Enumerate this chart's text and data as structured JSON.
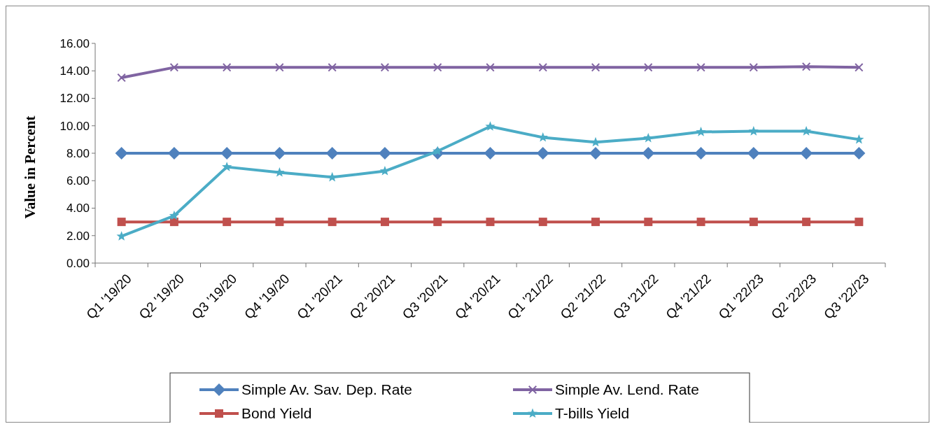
{
  "chart_data": {
    "type": "line",
    "ylabel": "Value in Percent",
    "categories": [
      "Q1 '19/20",
      "Q2 '19/20",
      "Q3 '19/20",
      "Q4 '19/20",
      "Q1 '20/21",
      "Q2 '20/21",
      "Q3 '20/21",
      "Q4 '20/21",
      "Q1 '21/22",
      "Q2 '21/22",
      "Q3 '21/22",
      "Q4 '21/22",
      "Q1 '22/23",
      "Q2 '22/23",
      "Q3 '22/23"
    ],
    "series": [
      {
        "name": "Simple Av. Sav. Dep. Rate",
        "color": "#4f81bd",
        "marker": "diamond",
        "values": [
          8,
          8,
          8,
          8,
          8,
          8,
          8,
          8,
          8,
          8,
          8,
          8,
          8,
          8,
          8
        ]
      },
      {
        "name": "Simple Av. Lend. Rate",
        "color": "#8064a2",
        "marker": "cross",
        "values": [
          13.5,
          14.25,
          14.25,
          14.25,
          14.25,
          14.25,
          14.25,
          14.25,
          14.25,
          14.25,
          14.25,
          14.25,
          14.25,
          14.3,
          14.25
        ]
      },
      {
        "name": "Bond Yield",
        "color": "#c0504d",
        "marker": "square",
        "values": [
          3,
          3,
          3,
          3,
          3,
          3,
          3,
          3,
          3,
          3,
          3,
          3,
          3,
          3,
          3
        ]
      },
      {
        "name": "T-bills Yield",
        "color": "#4bacc6",
        "marker": "star",
        "values": [
          1.95,
          3.45,
          7.0,
          6.6,
          6.25,
          6.7,
          8.15,
          9.95,
          9.15,
          8.8,
          9.1,
          9.55,
          9.6,
          9.6,
          9.0
        ]
      }
    ],
    "ylim": [
      0,
      16
    ],
    "yticks": [
      {
        "value": 0,
        "label": "0.00"
      },
      {
        "value": 2,
        "label": "2.00"
      },
      {
        "value": 4,
        "label": "4.00"
      },
      {
        "value": 6,
        "label": "6.00"
      },
      {
        "value": 8,
        "label": "8.00"
      },
      {
        "value": 10,
        "label": "10.00"
      },
      {
        "value": 12,
        "label": "12.00"
      },
      {
        "value": 14,
        "label": "14.00"
      },
      {
        "value": 16,
        "label": "16.00"
      }
    ],
    "grid": false,
    "legend": "bottom"
  }
}
